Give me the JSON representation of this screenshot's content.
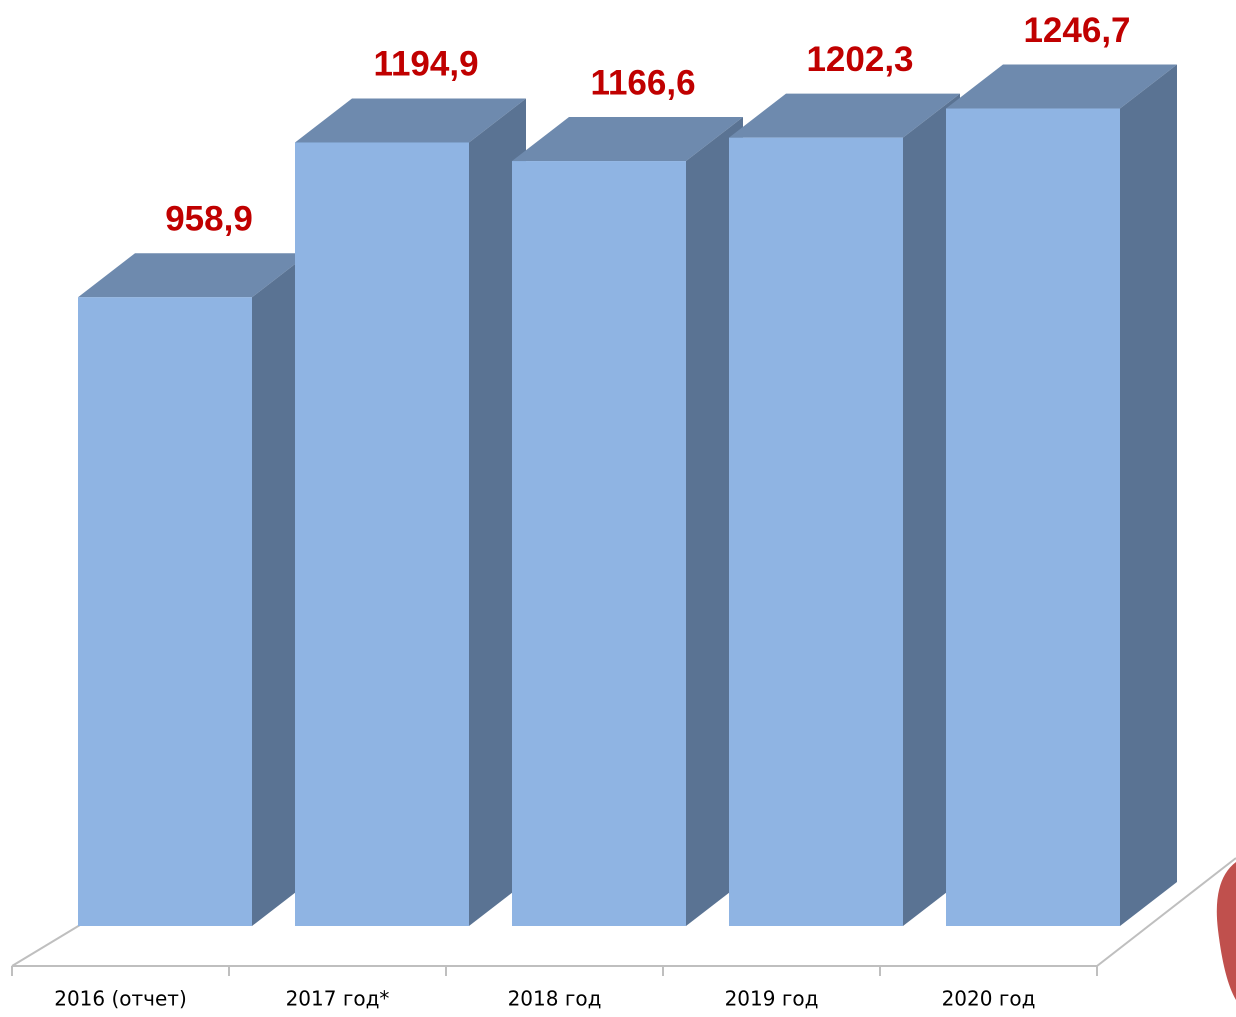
{
  "chart_data": {
    "type": "bar3d",
    "categories": [
      "2016 (отчет)",
      "2017 год*",
      "2018 год",
      "2019 год",
      "2020 год"
    ],
    "values": [
      958.9,
      1194.9,
      1166.6,
      1202.3,
      1246.7
    ],
    "value_labels": [
      "958,9",
      "1194,9",
      "1166,6",
      "1202,3",
      "1246,7"
    ],
    "color": "#8fb4e3",
    "label_color": "#c00000",
    "ylim": [
      0,
      1400
    ]
  }
}
